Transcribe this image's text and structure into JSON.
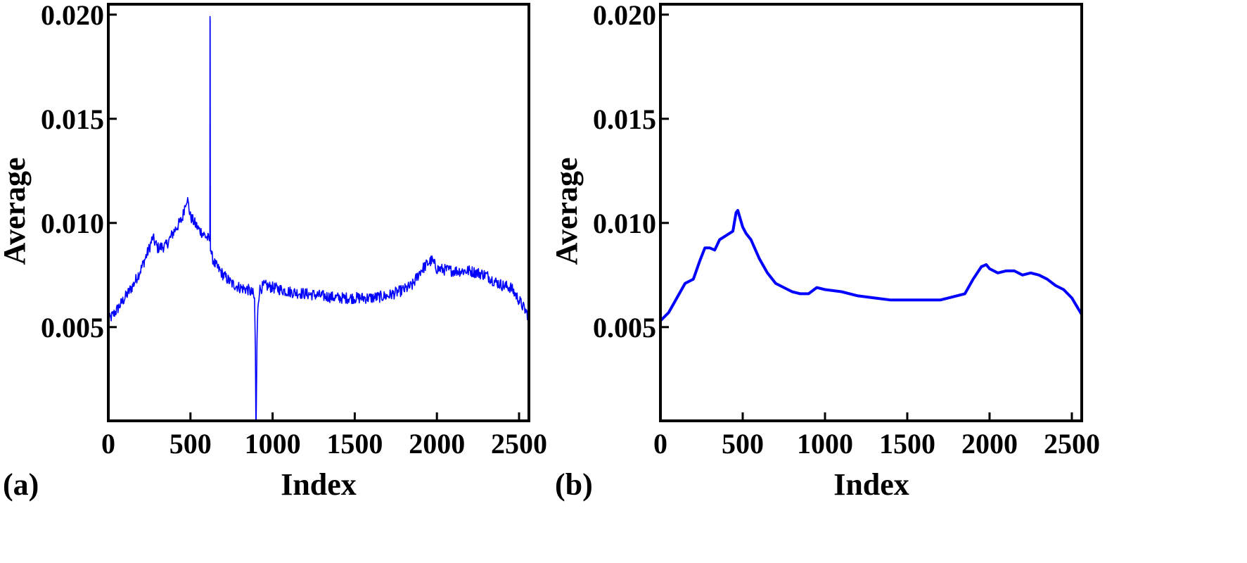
{
  "figure": {
    "panels": [
      "(a)",
      "(b)"
    ]
  },
  "chart_data": [
    {
      "type": "line",
      "panel_label": "(a)",
      "xlabel": "Index",
      "ylabel": "Average",
      "xlim": [
        0,
        2560
      ],
      "ylim": [
        0.0005,
        0.0205
      ],
      "xticks": [
        0,
        500,
        1000,
        1500,
        2000,
        2500
      ],
      "xtick_labels": [
        "0",
        "500",
        "1000",
        "1500",
        "2000",
        "2500"
      ],
      "yticks": [
        0.005,
        0.01,
        0.015,
        0.02
      ],
      "ytick_labels": [
        "0.005",
        "0.010",
        "0.015",
        "0.020"
      ],
      "grid": false,
      "color": "#0000ff",
      "noisy": true,
      "series": [
        {
          "x": [
            0,
            50,
            100,
            150,
            200,
            250,
            270,
            300,
            350,
            400,
            450,
            470,
            480,
            500,
            550,
            600,
            615,
            618,
            619,
            620,
            621,
            622,
            630,
            650,
            700,
            750,
            800,
            850,
            880,
            890,
            895,
            898,
            900,
            905,
            910,
            920,
            950,
            1000,
            1100,
            1200,
            1300,
            1400,
            1500,
            1600,
            1700,
            1800,
            1850,
            1900,
            1950,
            1970,
            2000,
            2100,
            2200,
            2250,
            2300,
            2350,
            2400,
            2450,
            2500,
            2560
          ],
          "y": [
            0.0053,
            0.0058,
            0.0064,
            0.007,
            0.0078,
            0.0088,
            0.0093,
            0.0088,
            0.0089,
            0.0096,
            0.0102,
            0.011,
            0.0112,
            0.0103,
            0.0097,
            0.0093,
            0.0092,
            0.0092,
            0.0197,
            0.0197,
            0.0095,
            0.0089,
            0.0084,
            0.008,
            0.0075,
            0.0071,
            0.0069,
            0.0068,
            0.0066,
            0.0063,
            0.004,
            0.0005,
            0.0005,
            0.0042,
            0.006,
            0.0068,
            0.007,
            0.0069,
            0.0067,
            0.0066,
            0.0065,
            0.0064,
            0.0064,
            0.0064,
            0.0065,
            0.0068,
            0.007,
            0.0077,
            0.0081,
            0.0082,
            0.0078,
            0.0077,
            0.0077,
            0.0076,
            0.0075,
            0.0072,
            0.007,
            0.0069,
            0.0063,
            0.0055
          ]
        }
      ]
    },
    {
      "type": "line",
      "panel_label": "(b)",
      "xlabel": "Index",
      "ylabel": "Average",
      "xlim": [
        0,
        2560
      ],
      "ylim": [
        0.0005,
        0.0205
      ],
      "xticks": [
        0,
        500,
        1000,
        1500,
        2000,
        2500
      ],
      "xtick_labels": [
        "0",
        "500",
        "1000",
        "1500",
        "2000",
        "2500"
      ],
      "yticks": [
        0.005,
        0.01,
        0.015,
        0.02
      ],
      "ytick_labels": [
        "0.005",
        "0.010",
        "0.015",
        "0.020"
      ],
      "grid": false,
      "color": "#0000ff",
      "noisy": false,
      "series": [
        {
          "x": [
            0,
            50,
            100,
            150,
            200,
            240,
            270,
            300,
            330,
            360,
            400,
            440,
            460,
            470,
            500,
            520,
            550,
            600,
            650,
            700,
            750,
            800,
            850,
            900,
            950,
            1000,
            1100,
            1200,
            1300,
            1400,
            1500,
            1600,
            1700,
            1800,
            1850,
            1900,
            1950,
            1980,
            2000,
            2050,
            2100,
            2150,
            2200,
            2250,
            2300,
            2350,
            2400,
            2450,
            2500,
            2560
          ],
          "y": [
            0.0053,
            0.0057,
            0.0064,
            0.0071,
            0.0073,
            0.0082,
            0.0088,
            0.0088,
            0.0087,
            0.0092,
            0.0094,
            0.0096,
            0.0105,
            0.0106,
            0.0098,
            0.0095,
            0.0092,
            0.0083,
            0.0076,
            0.0071,
            0.0069,
            0.0067,
            0.0066,
            0.0066,
            0.0069,
            0.0068,
            0.0067,
            0.0065,
            0.0064,
            0.0063,
            0.0063,
            0.0063,
            0.0063,
            0.0065,
            0.0066,
            0.0073,
            0.0079,
            0.008,
            0.0078,
            0.0076,
            0.0077,
            0.0077,
            0.0075,
            0.0076,
            0.0075,
            0.0073,
            0.007,
            0.0068,
            0.0064,
            0.0056
          ]
        }
      ]
    }
  ]
}
